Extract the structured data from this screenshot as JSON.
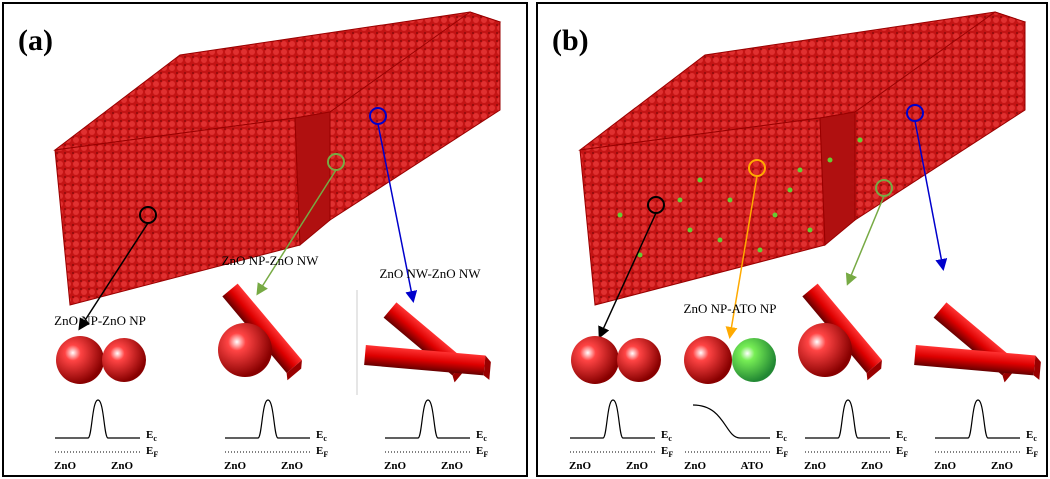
{
  "panels": [
    {
      "label": "(a)",
      "junctions": [
        {
          "title": "ZnO NP-ZnO NP",
          "left": "ZnO",
          "right": "ZnO"
        },
        {
          "title": "ZnO NP-ZnO NW",
          "left": "ZnO",
          "right": "ZnO"
        },
        {
          "title": "ZnO NW-ZnO NW",
          "left": "ZnO",
          "right": "ZnO"
        }
      ]
    },
    {
      "label": "(b)",
      "junctions": [
        {
          "left": "ZnO",
          "right": "ZnO"
        },
        {
          "title": "ZnO NP-ATO NP",
          "left": "ZnO",
          "right": "ATO"
        },
        {
          "left": "ZnO",
          "right": "ZnO"
        },
        {
          "left": "ZnO",
          "right": "ZnO"
        }
      ]
    }
  ],
  "band_labels": {
    "conduction": {
      "main": "E",
      "sub": "c"
    },
    "fermi": {
      "main": "E",
      "sub": "F"
    }
  }
}
